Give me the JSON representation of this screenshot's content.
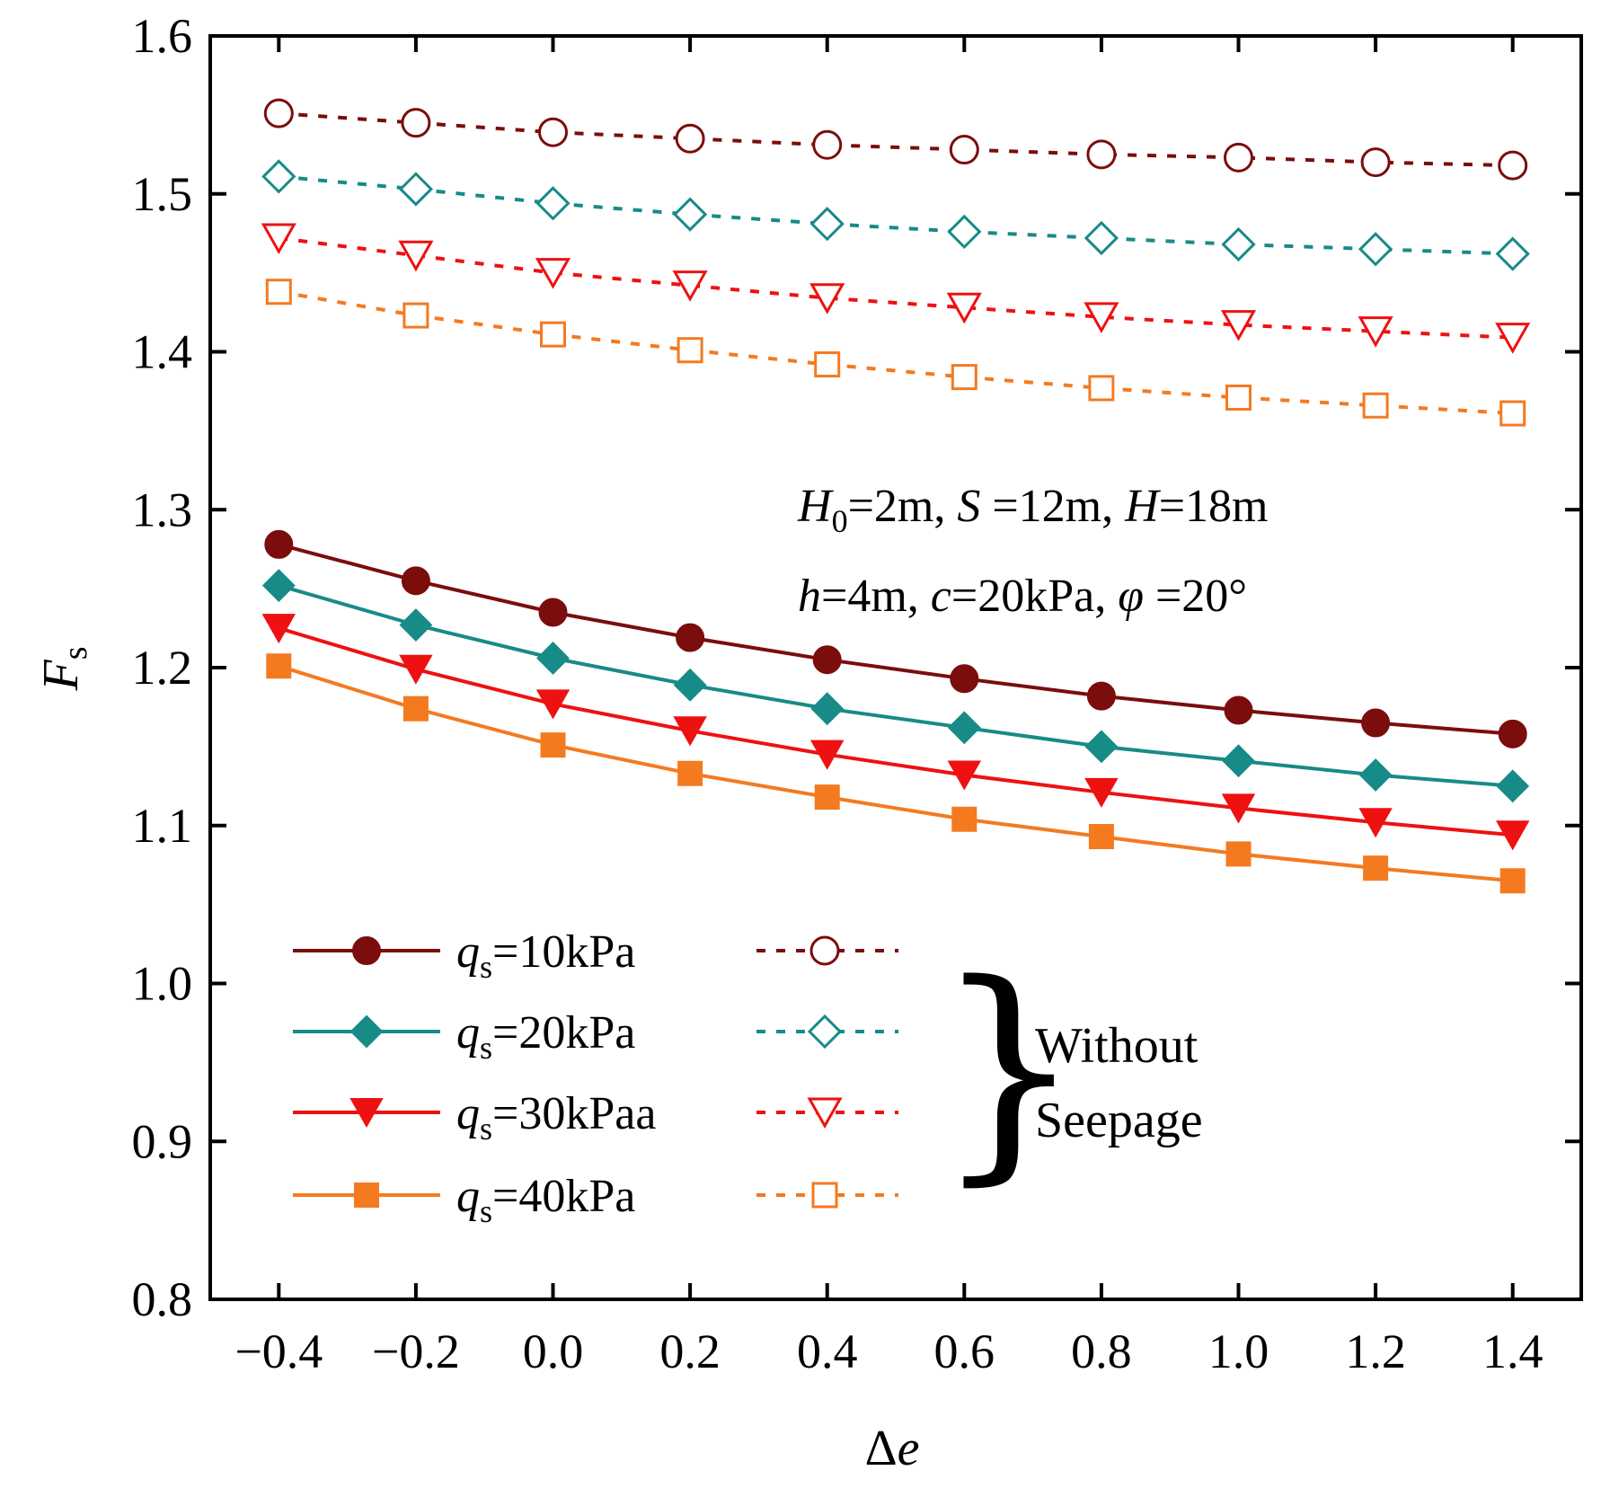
{
  "chart_data": {
    "type": "line",
    "title": "",
    "xlabel": "Δe",
    "ylabel": "Fs",
    "xlim": [
      -0.5,
      1.5
    ],
    "ylim": [
      0.8,
      1.6
    ],
    "x": [
      -0.4,
      -0.2,
      0.0,
      0.2,
      0.4,
      0.6,
      0.8,
      1.0,
      1.2,
      1.4
    ],
    "x_tick_labels": [
      "−0.4",
      "−0.2",
      "0.0",
      "0.2",
      "0.4",
      "0.6",
      "0.8",
      "1.0",
      "1.2",
      "1.4"
    ],
    "y_ticks": [
      0.8,
      0.9,
      1.0,
      1.1,
      1.2,
      1.3,
      1.4,
      1.5,
      1.6
    ],
    "y_tick_labels": [
      "0.8",
      "0.9",
      "1.0",
      "1.1",
      "1.2",
      "1.3",
      "1.4",
      "1.5",
      "1.6"
    ],
    "series": [
      {
        "name": "qs=10kPa",
        "legend_sym": "q",
        "legend_sub": "s",
        "legend_rest": "=10kPa",
        "color": "#7b0d0d",
        "marker": "circle",
        "seepage": true,
        "values": [
          1.278,
          1.255,
          1.235,
          1.219,
          1.205,
          1.193,
          1.182,
          1.173,
          1.165,
          1.158
        ]
      },
      {
        "name": "qs=20kPa",
        "legend_sym": "q",
        "legend_sub": "s",
        "legend_rest": "=20kPa",
        "color": "#178b87",
        "marker": "diamond",
        "seepage": true,
        "values": [
          1.252,
          1.227,
          1.206,
          1.189,
          1.174,
          1.162,
          1.15,
          1.141,
          1.132,
          1.125
        ]
      },
      {
        "name": "qs=30kPaa",
        "legend_sym": "q",
        "legend_sub": "s",
        "legend_rest": "=30kPaa",
        "color": "#ee1111",
        "marker": "triangle-down",
        "seepage": true,
        "values": [
          1.225,
          1.199,
          1.177,
          1.16,
          1.145,
          1.132,
          1.121,
          1.111,
          1.102,
          1.094
        ]
      },
      {
        "name": "qs=40kPa",
        "legend_sym": "q",
        "legend_sub": "s",
        "legend_rest": "=40kPa",
        "color": "#f47a20",
        "marker": "square",
        "seepage": true,
        "values": [
          1.201,
          1.174,
          1.151,
          1.133,
          1.118,
          1.104,
          1.093,
          1.082,
          1.073,
          1.065
        ]
      },
      {
        "name": "qs=10kPa without seepage",
        "color": "#7b0d0d",
        "marker": "circle",
        "seepage": false,
        "values": [
          1.551,
          1.545,
          1.539,
          1.535,
          1.531,
          1.528,
          1.525,
          1.523,
          1.52,
          1.518
        ]
      },
      {
        "name": "qs=20kPa without seepage",
        "color": "#178b87",
        "marker": "diamond",
        "seepage": false,
        "values": [
          1.511,
          1.503,
          1.494,
          1.487,
          1.481,
          1.476,
          1.472,
          1.468,
          1.465,
          1.462
        ]
      },
      {
        "name": "qs=30kPaa without seepage",
        "color": "#ee1111",
        "marker": "triangle-down",
        "seepage": false,
        "values": [
          1.472,
          1.461,
          1.45,
          1.442,
          1.434,
          1.428,
          1.422,
          1.417,
          1.413,
          1.409
        ]
      },
      {
        "name": "qs=40kPa without seepage",
        "color": "#f47a20",
        "marker": "square",
        "seepage": false,
        "values": [
          1.438,
          1.423,
          1.411,
          1.401,
          1.392,
          1.384,
          1.377,
          1.371,
          1.366,
          1.361
        ]
      }
    ],
    "annotation": {
      "line1": [
        {
          "t": "H",
          "it": true
        },
        {
          "t": "0",
          "sub": true
        },
        {
          "t": "=2m, "
        },
        {
          "t": "S",
          "it": true
        },
        {
          "t": " =12m, "
        },
        {
          "t": "H",
          "it": true
        },
        {
          "t": "=18m"
        }
      ],
      "line2": [
        {
          "t": "h",
          "it": true
        },
        {
          "t": "=4m, "
        },
        {
          "t": "c",
          "it": true
        },
        {
          "t": "=20kPa, "
        },
        {
          "t": "φ",
          "it": true
        },
        {
          "t": " =20°"
        }
      ]
    },
    "brace_label": [
      "Without",
      "Seepage"
    ],
    "legend_position": "bottom-left",
    "grid": false
  }
}
